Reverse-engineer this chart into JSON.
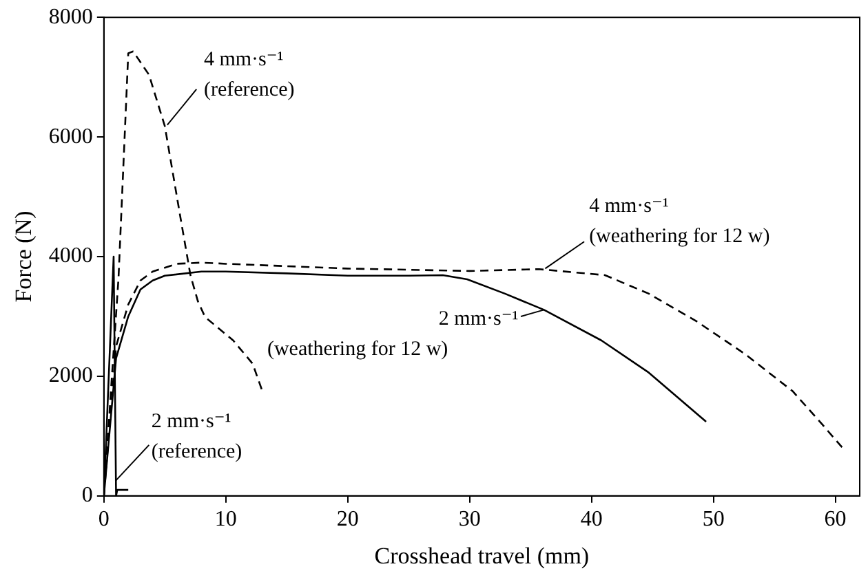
{
  "chart_data": {
    "type": "line",
    "xlabel": "Crosshead travel (mm)",
    "ylabel": "Force (N)",
    "xlim": [
      0,
      62
    ],
    "xticks": [
      0,
      10,
      20,
      30,
      40,
      50,
      60
    ],
    "ylim": [
      0,
      8000
    ],
    "yticks": [
      0,
      2000,
      4000,
      6000,
      8000
    ],
    "grid": false,
    "marker": "none",
    "series": [
      {
        "name": "4 mm·s⁻¹\n(reference)",
        "color": "#000000",
        "line_style": "dashed",
        "x": [
          0,
          1.2,
          2.0,
          2.4,
          3.7,
          5.0,
          6.3,
          7.1,
          7.7,
          8.3,
          10.6,
          12.2,
          13.0
        ],
        "values": [
          0,
          3640,
          7400,
          7430,
          7040,
          6180,
          4630,
          3690,
          3260,
          2990,
          2600,
          2210,
          1750
        ]
      },
      {
        "name": "4 mm·s⁻¹\n(weathering for 12 w)",
        "color": "#000000",
        "line_style": "dashed",
        "x": [
          0,
          1,
          2,
          3,
          4,
          6,
          8,
          10,
          20,
          30,
          35.7,
          41.1,
          44.7,
          48.6,
          52.6,
          56.5,
          58.9,
          60.6
        ],
        "values": [
          0,
          2500,
          3200,
          3600,
          3750,
          3880,
          3900,
          3880,
          3800,
          3760,
          3790,
          3690,
          3380,
          2920,
          2370,
          1750,
          1200,
          800
        ]
      },
      {
        "name": "2 mm·s⁻¹\n(weathering for 12 w)",
        "color": "#000000",
        "line_style": "solid",
        "x": [
          0,
          1,
          2,
          3,
          4,
          5,
          8,
          10,
          15,
          20,
          25,
          27.8,
          29.8,
          32.9,
          36.1,
          40.8,
          44.7,
          49.4
        ],
        "values": [
          0,
          2300,
          3000,
          3450,
          3600,
          3680,
          3750,
          3750,
          3720,
          3680,
          3680,
          3690,
          3620,
          3380,
          3110,
          2600,
          2060,
          1240
        ]
      },
      {
        "name": "2 mm·s⁻¹\n(reference)",
        "color": "#000000",
        "line_style": "solid",
        "x": [
          0,
          0.8,
          1.0,
          1.1,
          2.0
        ],
        "values": [
          0,
          4000,
          0,
          100,
          100
        ]
      }
    ]
  }
}
